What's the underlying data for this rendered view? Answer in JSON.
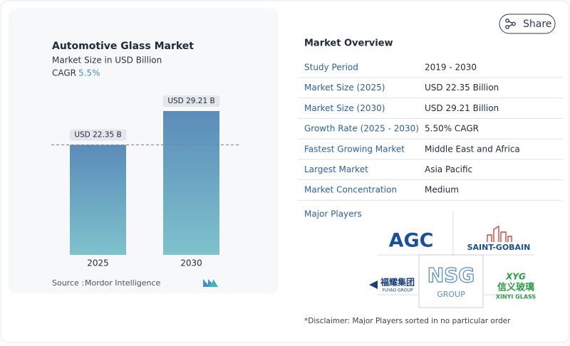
{
  "header": {
    "share": "Share"
  },
  "chart_data": {
    "type": "bar",
    "title": "Automotive Glass Market",
    "subtitle": "Market Size in USD Billion",
    "cagr_label": "CAGR",
    "cagr_value": "5.5%",
    "categories": [
      "2025",
      "2030"
    ],
    "values": [
      22.35,
      29.21
    ],
    "value_labels": [
      "USD 22.35 B",
      "USD 29.21 B"
    ],
    "color": "#6fa6c4"
  },
  "source": {
    "label": "Source :",
    "name": "Mordor Intelligence"
  },
  "overview": {
    "title": "Market Overview",
    "rows": [
      [
        "Study Period",
        "2019 - 2030"
      ],
      [
        "Market Size (2025)",
        "USD 22.35 Billion"
      ],
      [
        "Market Size (2030)",
        "USD 29.21 Billion"
      ],
      [
        "Growth Rate (2025 - 2030)",
        "5.50% CAGR"
      ],
      [
        "Fastest Growing Market",
        "Middle East and Africa"
      ],
      [
        "Largest Market",
        "Asia Pacific"
      ],
      [
        "Market Concentration",
        "Medium"
      ]
    ]
  },
  "players": {
    "title": "Major Players",
    "agc": "AGC",
    "saint_gobain": "SAINT-GOBAIN",
    "fuyao": "福耀集团",
    "fuyao_sub": "FUYAO GROUP",
    "nsg": "NSG",
    "nsg_sub": "GROUP",
    "xinyi_mark": "XYG",
    "xinyi": "信义玻璃",
    "xinyi_sub": "XINYI GLASS",
    "disclaimer": "*Disclaimer: Major Players sorted in no particular order"
  }
}
